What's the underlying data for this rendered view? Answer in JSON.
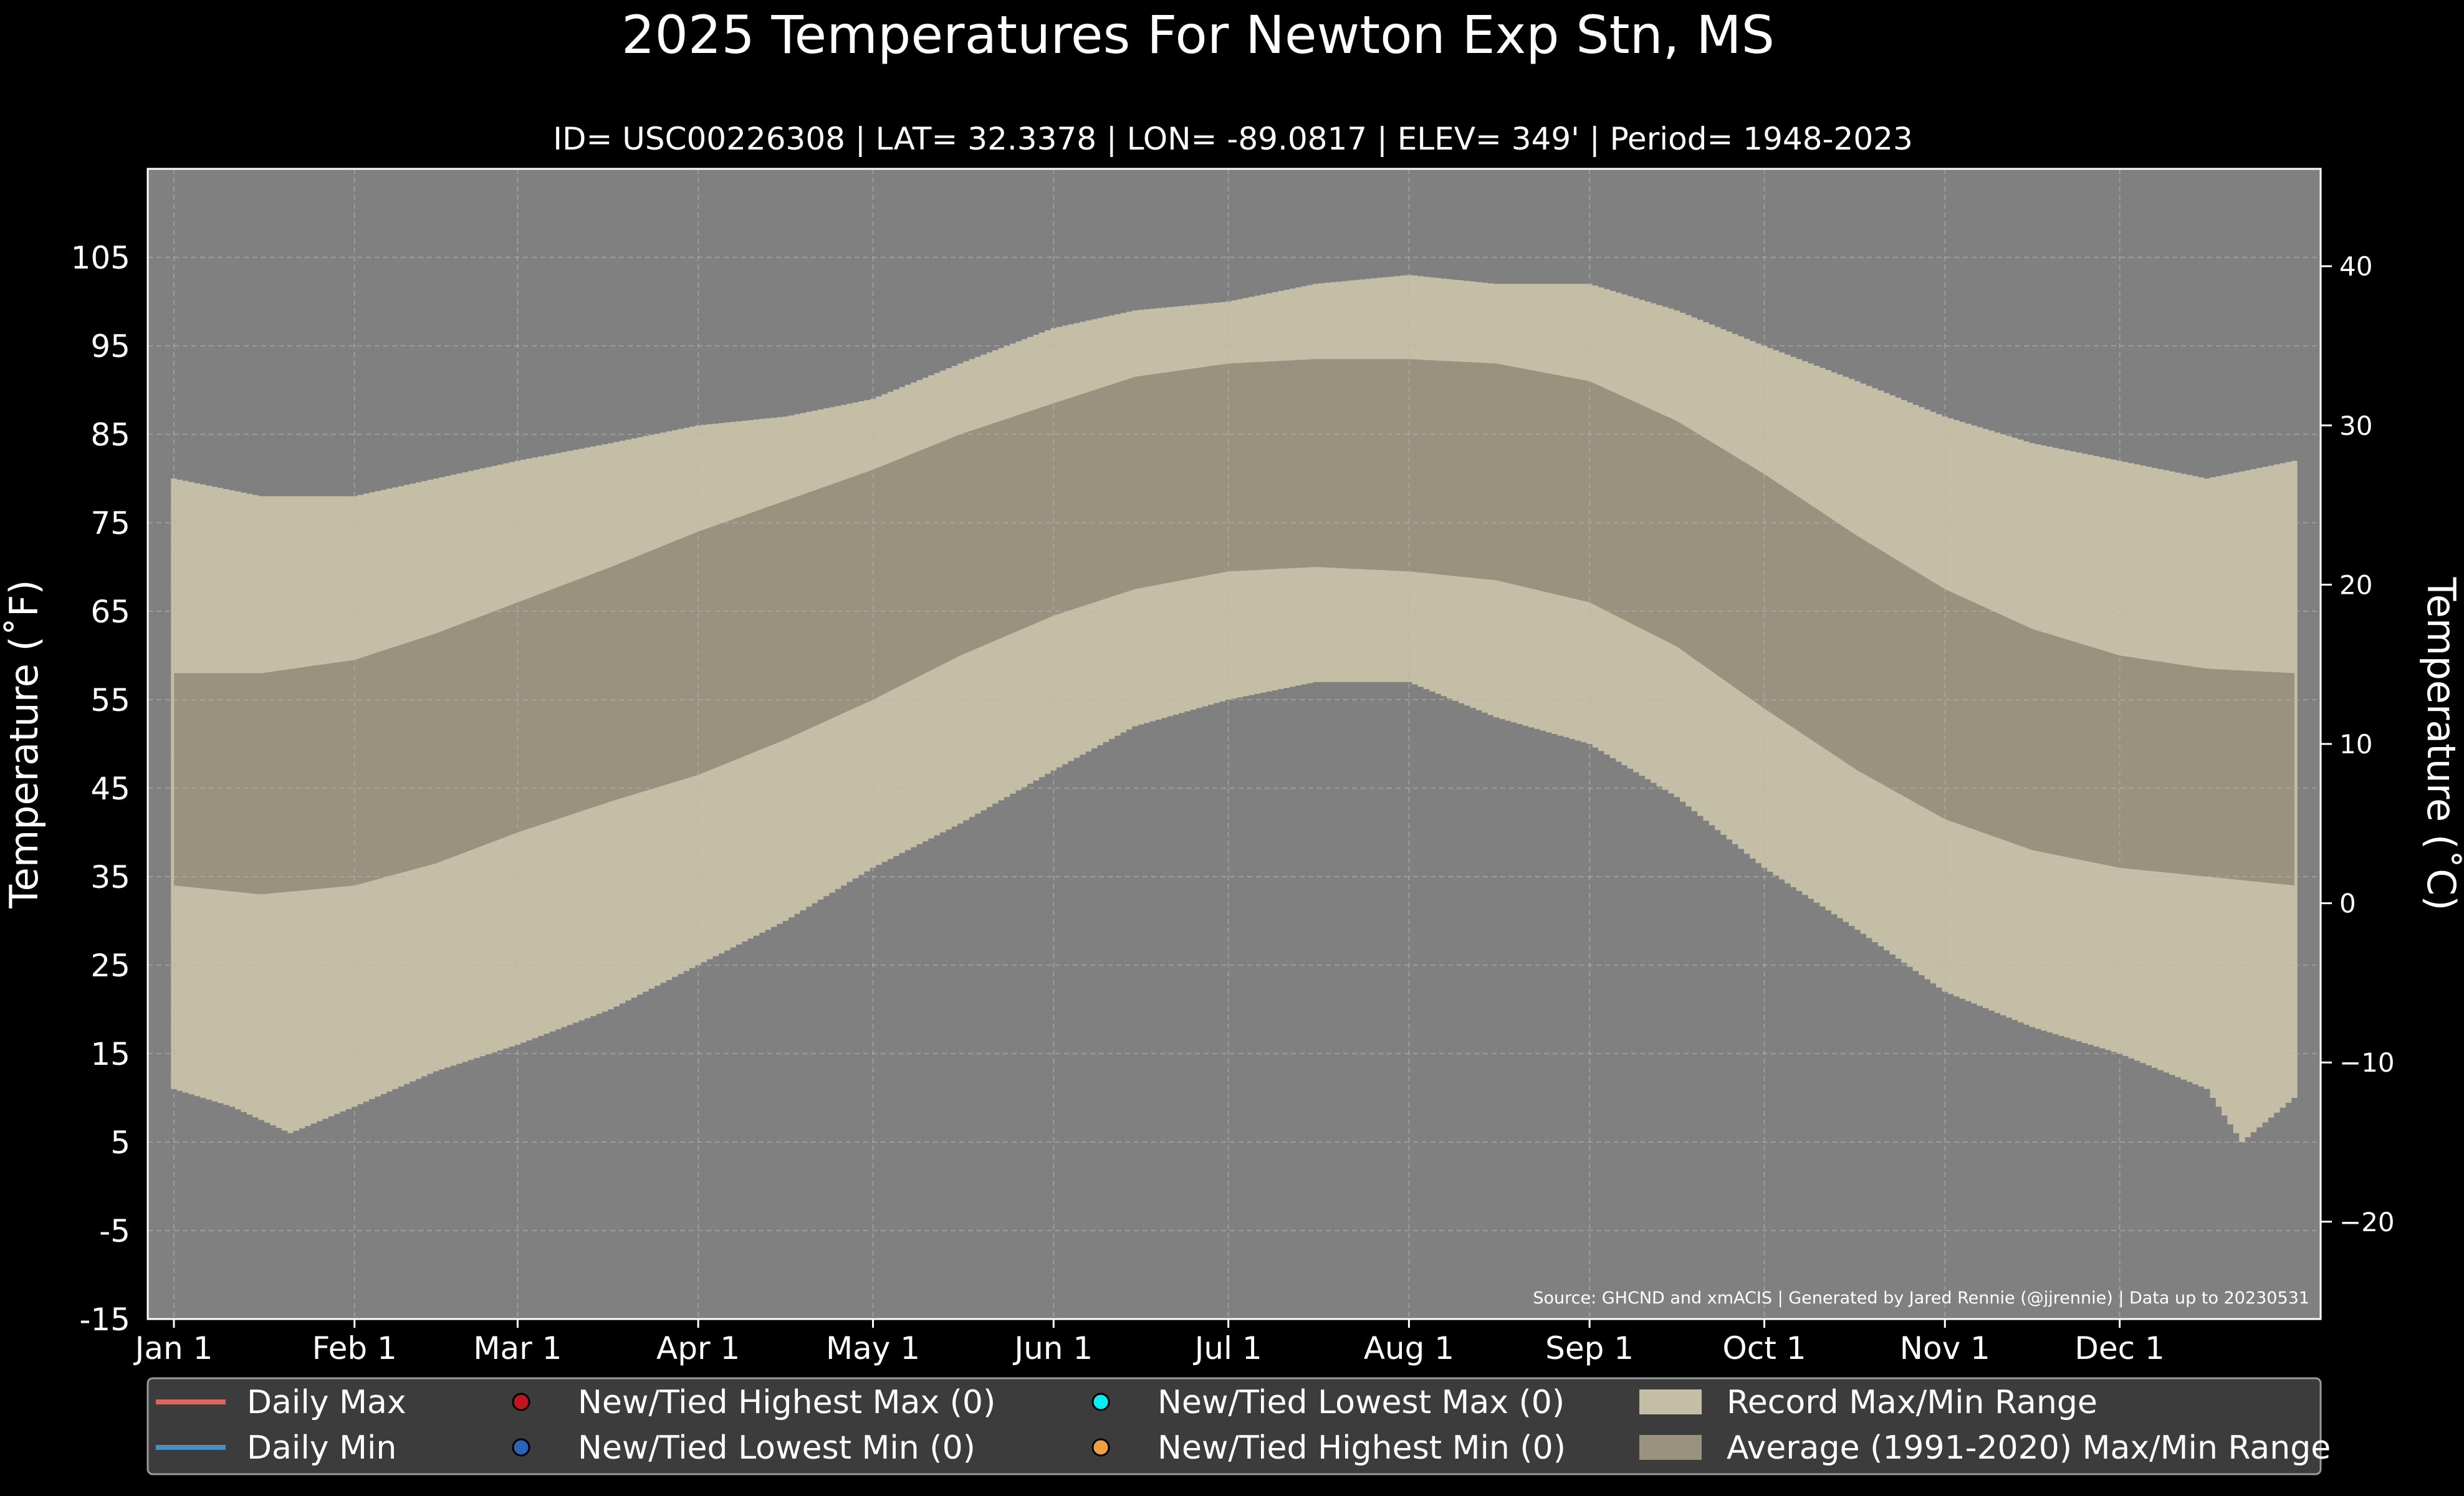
{
  "colors": {
    "background": "#000000",
    "plot_bg": "#808080",
    "record_band": "#c5bea6",
    "normal_band": "#9a917f",
    "grid": "#b4b4b4",
    "daily_max": "#e0665a",
    "daily_min": "#4a8fc4",
    "new_high_max": "#c0141e",
    "new_low_min": "#2a63b8",
    "new_low_max": "#00f0f0",
    "new_high_min": "#f0a040",
    "legend_bg": "#3c3c3c",
    "text": "#ffffff"
  },
  "chart_data": {
    "type": "area",
    "title": "2025 Temperatures For Newton Exp Stn, MS",
    "subtitle": "ID= USC00226308 | LAT= 32.3378 | LON= -89.0817 | ELEV= 349' | Period= 1948-2023",
    "ylabel_left": "Temperature ($^\\circ$F)",
    "ylabel_left_display": "Temperature (˚F)",
    "ylabel_right_display": "Temperature (˚C)",
    "ylim_f": [
      -15,
      115
    ],
    "yticks_f": [
      "-15",
      "-5",
      "5",
      "15",
      "25",
      "35",
      "45",
      "55",
      "65",
      "75",
      "85",
      "95",
      "105"
    ],
    "yticks_c": [
      "−20",
      "−10",
      "0",
      "10",
      "20",
      "30",
      "40"
    ],
    "x_months": [
      "Jan 1",
      "Feb 1",
      "Mar 1",
      "Apr 1",
      "May 1",
      "Jun 1",
      "Jul 1",
      "Aug 1",
      "Sep 1",
      "Oct 1",
      "Nov 1",
      "Dec 1"
    ],
    "x_month_start_day": [
      0,
      31,
      59,
      90,
      120,
      151,
      181,
      212,
      243,
      273,
      304,
      334
    ],
    "days_in_year": 365,
    "grid": true,
    "legend_position": "bottom",
    "source_note": "Source: GHCND and xmACIS | Generated by Jared Rennie (@jjrennie) | Data up to 20230531",
    "series": [
      {
        "name": "Record Max/Min Range",
        "kind": "record_band",
        "record_max_day": [
          0,
          15,
          31,
          45,
          59,
          75,
          90,
          105,
          120,
          135,
          151,
          165,
          181,
          196,
          212,
          227,
          243,
          258,
          273,
          289,
          304,
          319,
          334,
          349,
          364
        ],
        "record_max_f": [
          80,
          78,
          78,
          80,
          82,
          84,
          86,
          87,
          89,
          93,
          97,
          99,
          100,
          102,
          103,
          102,
          102,
          99,
          95,
          91,
          87,
          84,
          82,
          80,
          82
        ],
        "record_min_day": [
          0,
          10,
          20,
          31,
          45,
          59,
          75,
          90,
          105,
          120,
          135,
          151,
          165,
          181,
          196,
          212,
          227,
          243,
          258,
          273,
          289,
          304,
          319,
          334,
          349,
          355,
          364
        ],
        "record_min_f": [
          11,
          9,
          6,
          9,
          13,
          16,
          20,
          25,
          30,
          36,
          41,
          47,
          52,
          55,
          57,
          57,
          53,
          50,
          44,
          36,
          29,
          22,
          18,
          15,
          11,
          5,
          10
        ]
      },
      {
        "name": "Average (1991-2020) Max/Min Range",
        "kind": "normal_band",
        "normal_max_day": [
          0,
          15,
          31,
          45,
          59,
          75,
          90,
          105,
          120,
          135,
          151,
          165,
          181,
          196,
          212,
          227,
          243,
          258,
          273,
          289,
          304,
          319,
          334,
          349,
          364
        ],
        "normal_max_f": [
          58,
          58,
          59.5,
          62.5,
          66,
          70,
          74,
          77.5,
          81,
          85,
          88.5,
          91.5,
          93,
          93.5,
          93.5,
          93,
          91,
          86.5,
          80.5,
          73.5,
          67.5,
          63,
          60,
          58.5,
          58
        ],
        "normal_min_day": [
          0,
          15,
          31,
          45,
          59,
          75,
          90,
          105,
          120,
          135,
          151,
          165,
          181,
          196,
          212,
          227,
          243,
          258,
          273,
          289,
          304,
          319,
          334,
          349,
          364
        ],
        "normal_min_f": [
          34,
          33,
          34,
          36.5,
          40,
          43.5,
          46.5,
          50.5,
          55,
          60,
          64.5,
          67.5,
          69.5,
          70,
          69.5,
          68.5,
          66,
          61,
          54,
          47,
          41.5,
          38,
          36,
          35,
          34
        ]
      }
    ],
    "legend": [
      {
        "name": "Daily Max",
        "marker": "line",
        "color_key": "daily_max"
      },
      {
        "name": "New/Tied Highest Max (0)",
        "marker": "dot",
        "color_key": "new_high_max"
      },
      {
        "name": "New/Tied Lowest Max (0)",
        "marker": "dot",
        "color_key": "new_low_max"
      },
      {
        "name": "Record Max/Min Range",
        "marker": "box",
        "color_key": "record_band"
      },
      {
        "name": "Daily Min",
        "marker": "line",
        "color_key": "daily_min"
      },
      {
        "name": "New/Tied Lowest Min (0)",
        "marker": "dot",
        "color_key": "new_low_min"
      },
      {
        "name": "New/Tied Highest Min (0)",
        "marker": "dot",
        "color_key": "new_high_min"
      },
      {
        "name": "Average (1991-2020) Max/Min Range",
        "marker": "box",
        "color_key": "normal_band"
      }
    ]
  }
}
